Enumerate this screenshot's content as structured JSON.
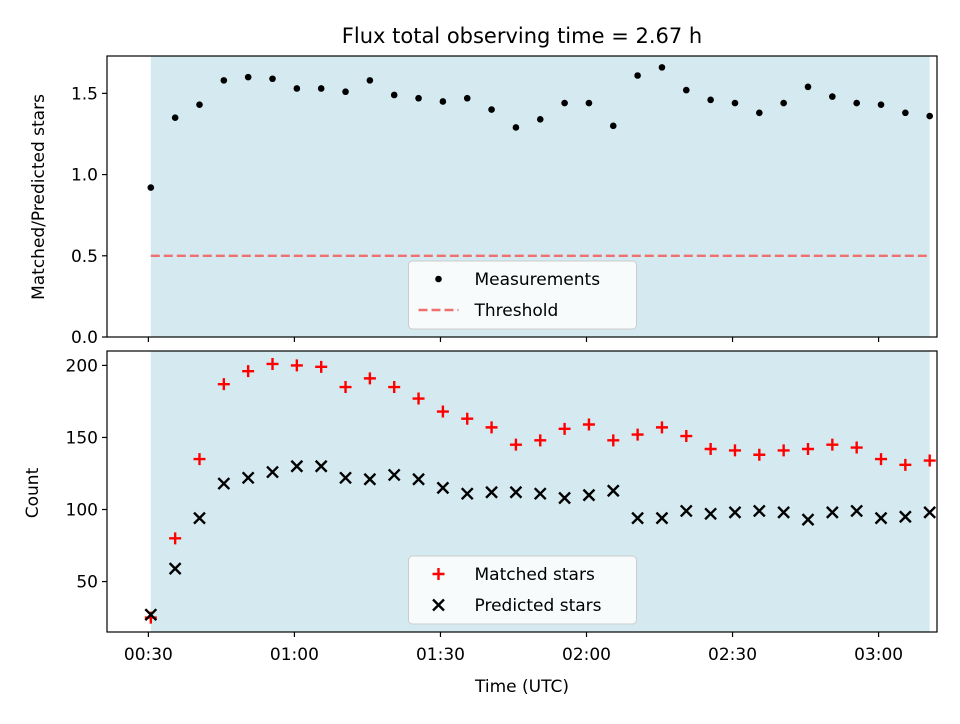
{
  "figure": {
    "title": "Flux total observing time = 2.67 h",
    "xlabel": "Time (UTC)",
    "x_ticks": [
      "00:30",
      "01:00",
      "01:30",
      "02:00",
      "02:30",
      "03:00"
    ],
    "x_tick_minutes": [
      30,
      60,
      90,
      120,
      150,
      180
    ],
    "xlim_minutes": [
      21.5,
      192
    ],
    "shade_color": "#d4eaf0",
    "shade_minutes": [
      30.5,
      190.5
    ]
  },
  "chart_data": [
    {
      "type": "scatter",
      "ylabel": "Matched/Predicted stars",
      "ylim": [
        0,
        1.73
      ],
      "y_ticks": [
        0.0,
        0.5,
        1.0,
        1.5
      ],
      "y_tick_labels": [
        "0.0",
        "0.5",
        "1.0",
        "1.5"
      ],
      "legend_position": "lower-center",
      "series": [
        {
          "name": "Measurements",
          "marker": "dot",
          "color": "#000000",
          "x": [
            30.5,
            35.5,
            40.5,
            45.5,
            50.5,
            55.5,
            60.5,
            65.5,
            70.5,
            75.5,
            80.5,
            85.5,
            90.5,
            95.5,
            100.5,
            105.5,
            110.5,
            115.5,
            120.5,
            125.5,
            130.5,
            135.5,
            140.5,
            145.5,
            150.5,
            155.5,
            160.5,
            165.5,
            170.5,
            175.5,
            180.5,
            185.5,
            190.5
          ],
          "y": [
            0.92,
            1.35,
            1.43,
            1.58,
            1.6,
            1.59,
            1.53,
            1.53,
            1.51,
            1.58,
            1.49,
            1.47,
            1.45,
            1.47,
            1.4,
            1.29,
            1.34,
            1.44,
            1.44,
            1.3,
            1.61,
            1.66,
            1.52,
            1.46,
            1.44,
            1.38,
            1.44,
            1.54,
            1.48,
            1.44,
            1.43,
            1.38,
            1.36
          ]
        },
        {
          "name": "Threshold",
          "marker": "dashed-line",
          "color": "#f07070",
          "y_constant": 0.5
        }
      ]
    },
    {
      "type": "scatter",
      "ylabel": "Count",
      "ylim": [
        15,
        210
      ],
      "y_ticks": [
        50,
        100,
        150,
        200
      ],
      "y_tick_labels": [
        "50",
        "100",
        "150",
        "200"
      ],
      "legend_position": "lower-center",
      "series": [
        {
          "name": "Matched stars",
          "marker": "plus",
          "color": "#ff0000",
          "x": [
            30.5,
            35.5,
            40.5,
            45.5,
            50.5,
            55.5,
            60.5,
            65.5,
            70.5,
            75.5,
            80.5,
            85.5,
            90.5,
            95.5,
            100.5,
            105.5,
            110.5,
            115.5,
            120.5,
            125.5,
            130.5,
            135.5,
            140.5,
            145.5,
            150.5,
            155.5,
            160.5,
            165.5,
            170.5,
            175.5,
            180.5,
            185.5,
            190.5
          ],
          "y": [
            25,
            80,
            135,
            187,
            196,
            201,
            200,
            199,
            185,
            191,
            185,
            177,
            168,
            163,
            157,
            145,
            148,
            156,
            159,
            148,
            152,
            157,
            151,
            142,
            141,
            138,
            141,
            142,
            145,
            143,
            135,
            131,
            134
          ]
        },
        {
          "name": "Predicted stars",
          "marker": "x",
          "color": "#000000",
          "x": [
            30.5,
            35.5,
            40.5,
            45.5,
            50.5,
            55.5,
            60.5,
            65.5,
            70.5,
            75.5,
            80.5,
            85.5,
            90.5,
            95.5,
            100.5,
            105.5,
            110.5,
            115.5,
            120.5,
            125.5,
            130.5,
            135.5,
            140.5,
            145.5,
            150.5,
            155.5,
            160.5,
            165.5,
            170.5,
            175.5,
            180.5,
            185.5,
            190.5
          ],
          "y": [
            27,
            59,
            94,
            118,
            122,
            126,
            130,
            130,
            122,
            121,
            124,
            121,
            115,
            111,
            112,
            112,
            111,
            108,
            110,
            113,
            94,
            94,
            99,
            97,
            98,
            99,
            98,
            93,
            98,
            99,
            94,
            95,
            98
          ]
        }
      ]
    }
  ]
}
